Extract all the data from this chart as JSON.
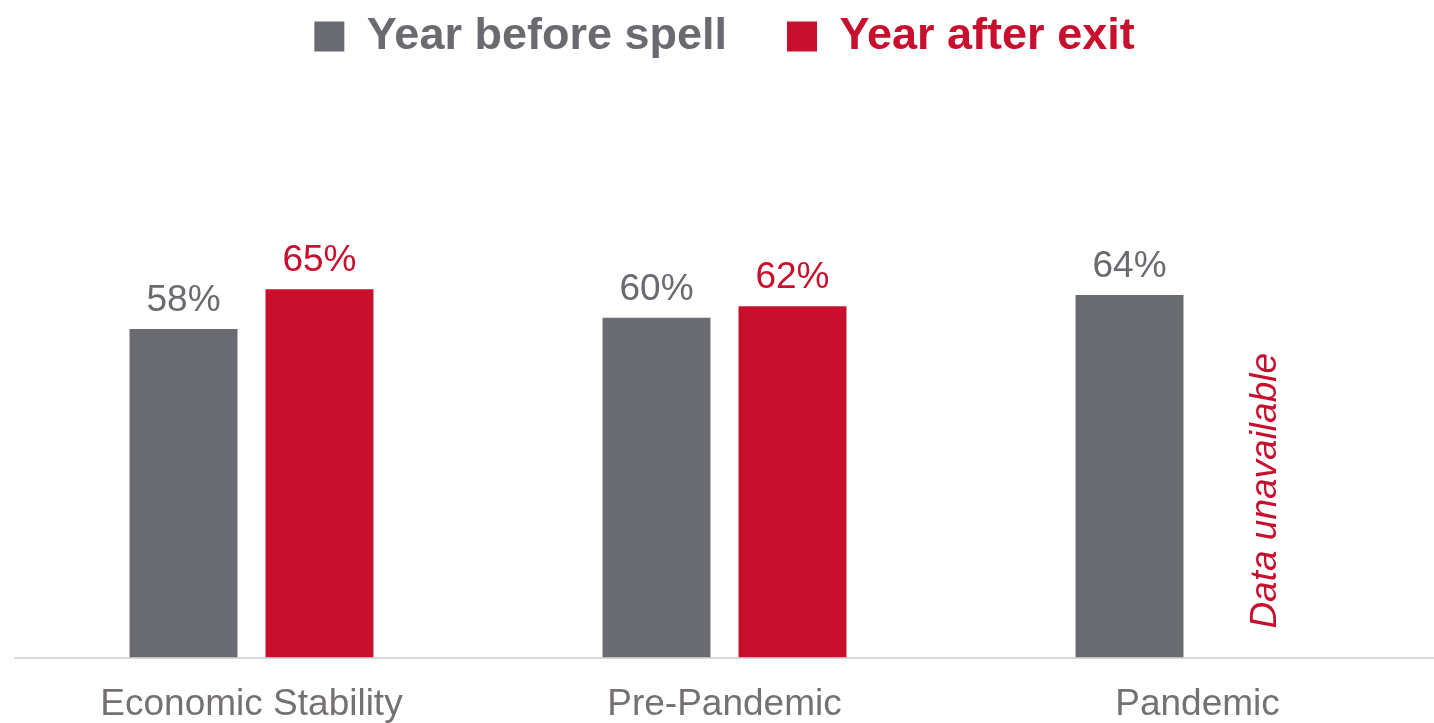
{
  "chart_data": {
    "type": "bar",
    "categories": [
      "Economic Stability",
      "Pre-Pandemic",
      "Pandemic"
    ],
    "series": [
      {
        "name": "Year before spell",
        "color": "#6a6b70",
        "values": [
          58,
          60,
          64
        ],
        "value_labels": [
          "58%",
          "60%",
          "64%"
        ]
      },
      {
        "name": "Year after exit",
        "color": "#c8102e",
        "values": [
          65,
          62,
          null
        ],
        "value_labels": [
          "65%",
          "62%",
          null
        ]
      }
    ],
    "legend": "top",
    "annotations": [
      "Data unavailable"
    ]
  }
}
